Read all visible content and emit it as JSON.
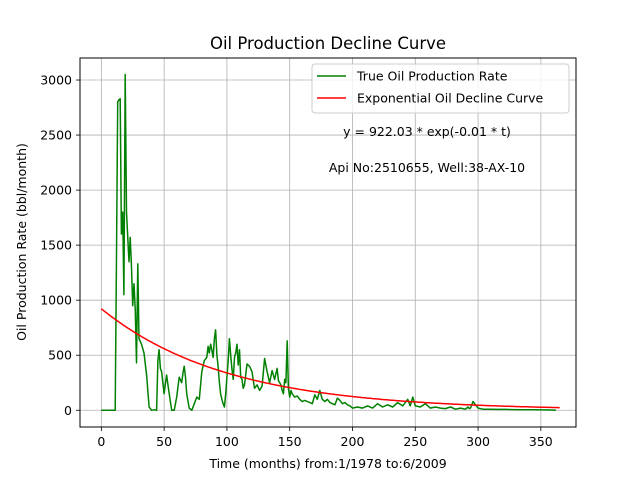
{
  "chart_data": {
    "type": "line",
    "title": "Oil Production Decline Curve",
    "xlabel": "Time (months) from:1/1978 to:6/2009",
    "ylabel": "Oil Production Rate (bbl/month)",
    "xlim": [
      -17,
      378
    ],
    "ylim": [
      -152,
      3200
    ],
    "xticks": [
      0,
      50,
      100,
      150,
      200,
      250,
      300,
      350
    ],
    "yticks": [
      0,
      500,
      1000,
      1500,
      2000,
      2500,
      3000
    ],
    "grid": true,
    "legend_position": "top-right",
    "series": [
      {
        "name": "True Oil Production Rate",
        "color": "#008000",
        "x": [
          0,
          4,
          8,
          11,
          12,
          13,
          14,
          15,
          16,
          17,
          18,
          19,
          20,
          21,
          22,
          23,
          24,
          25,
          26,
          27,
          28,
          29,
          30,
          32,
          34,
          36,
          38,
          40,
          42,
          44,
          45,
          46,
          47,
          48,
          50,
          52,
          54,
          56,
          58,
          60,
          62,
          64,
          65,
          66,
          67,
          68,
          70,
          72,
          74,
          76,
          78,
          80,
          82,
          84,
          85,
          86,
          87,
          88,
          89,
          90,
          91,
          92,
          93,
          94,
          95,
          96,
          97,
          98,
          99,
          100,
          101,
          102,
          103,
          104,
          105,
          106,
          107,
          108,
          109,
          110,
          111,
          112,
          113,
          114,
          116,
          118,
          120,
          122,
          124,
          126,
          128,
          130,
          132,
          134,
          136,
          138,
          140,
          141,
          142,
          143,
          144,
          145,
          146,
          147,
          148,
          149,
          150,
          151,
          152,
          154,
          156,
          158,
          160,
          162,
          164,
          166,
          168,
          170,
          172,
          174,
          176,
          178,
          180,
          182,
          184,
          186,
          188,
          190,
          192,
          194,
          196,
          198,
          200,
          204,
          208,
          212,
          216,
          220,
          224,
          228,
          232,
          236,
          240,
          244,
          246,
          248,
          250,
          254,
          258,
          262,
          266,
          270,
          274,
          278,
          282,
          286,
          290,
          292,
          293,
          294,
          296,
          300,
          304,
          310,
          316,
          322,
          328,
          334,
          340,
          346,
          352,
          358,
          362
        ],
        "values": [
          0,
          0,
          0,
          0,
          1300,
          2800,
          2820,
          2830,
          1600,
          1800,
          1050,
          3050,
          1800,
          1580,
          1350,
          1570,
          1300,
          950,
          1150,
          900,
          430,
          1330,
          650,
          600,
          520,
          320,
          30,
          0,
          5,
          0,
          450,
          550,
          380,
          350,
          150,
          320,
          150,
          0,
          0,
          120,
          300,
          250,
          340,
          400,
          300,
          150,
          20,
          0,
          60,
          120,
          100,
          350,
          450,
          480,
          580,
          520,
          600,
          550,
          480,
          650,
          730,
          500,
          400,
          250,
          150,
          100,
          60,
          30,
          150,
          300,
          450,
          650,
          500,
          380,
          280,
          480,
          520,
          600,
          410,
          550,
          300,
          280,
          200,
          230,
          420,
          400,
          350,
          200,
          230,
          180,
          220,
          470,
          350,
          250,
          360,
          280,
          380,
          270,
          250,
          230,
          180,
          150,
          280,
          250,
          630,
          200,
          120,
          180,
          150,
          120,
          130,
          100,
          80,
          90,
          80,
          70,
          60,
          140,
          100,
          180,
          100,
          80,
          100,
          70,
          60,
          50,
          110,
          90,
          60,
          70,
          50,
          40,
          20,
          30,
          20,
          40,
          20,
          60,
          30,
          50,
          30,
          70,
          40,
          100,
          40,
          120,
          40,
          30,
          60,
          20,
          30,
          20,
          15,
          30,
          10,
          20,
          10,
          30,
          15,
          20,
          80,
          20,
          10,
          10,
          8,
          8,
          6,
          5,
          5,
          5,
          3,
          2,
          1
        ]
      },
      {
        "name": "Exponential Oil Decline Curve",
        "color": "#ff0000",
        "function": "922.03*exp(-0.01*t)",
        "x_range": [
          0,
          365
        ]
      }
    ],
    "annotations": [
      "y = 922.03 * exp(-0.01 * t)",
      "Api No:2510655, Well:38-AX-10"
    ]
  }
}
